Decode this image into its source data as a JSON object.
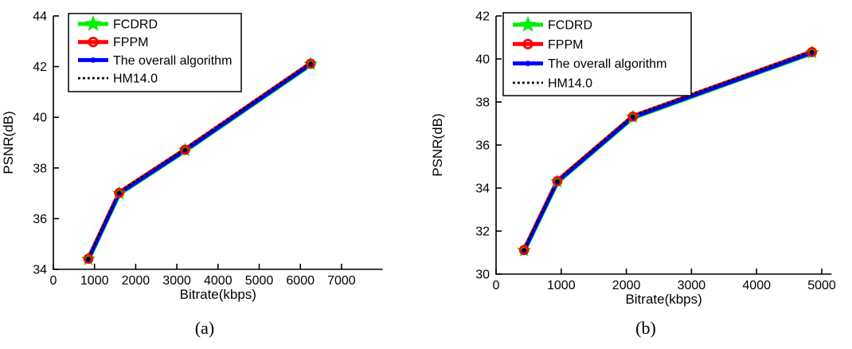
{
  "figure": {
    "background": "#ffffff",
    "axis_color": "#000000",
    "text_color": "#000000"
  },
  "chart_data": [
    {
      "type": "line",
      "panel": "a",
      "caption": "(a)",
      "xlabel": "Bitrate(kbps)",
      "ylabel": "PSNR(dB)",
      "xlim": [
        0,
        8000
      ],
      "ylim": [
        34,
        44
      ],
      "xticks": [
        0,
        1000,
        2000,
        3000,
        4000,
        5000,
        6000,
        7000
      ],
      "yticks": [
        34,
        36,
        38,
        40,
        42,
        44
      ],
      "grid": false,
      "legend_position": "top-left",
      "x": [
        850,
        1600,
        3200,
        6250
      ],
      "series": [
        {
          "name": "FCDRD",
          "color": "#00ee00",
          "marker": "star",
          "linestyle": "solid",
          "values": [
            34.4,
            37.0,
            38.7,
            42.1
          ]
        },
        {
          "name": "FPPM",
          "color": "#ff0000",
          "marker": "circle",
          "linestyle": "solid",
          "values": [
            34.4,
            37.0,
            38.7,
            42.1
          ]
        },
        {
          "name": "The overall algorithm",
          "color": "#0000ff",
          "marker": "point",
          "linestyle": "solid",
          "values": [
            34.4,
            37.0,
            38.7,
            42.1
          ]
        },
        {
          "name": "HM14.0",
          "color": "#000000",
          "marker": "none",
          "linestyle": "dotted",
          "values": [
            34.4,
            37.0,
            38.7,
            42.1
          ]
        }
      ]
    },
    {
      "type": "line",
      "panel": "b",
      "caption": "(b)",
      "xlabel": "Bitrate(kbps)",
      "ylabel": "PSNR(dB)",
      "xlim": [
        0,
        5150
      ],
      "ylim": [
        30,
        42
      ],
      "xticks": [
        0,
        1000,
        2000,
        3000,
        4000,
        5000
      ],
      "yticks": [
        30,
        32,
        34,
        36,
        38,
        40,
        42
      ],
      "grid": false,
      "legend_position": "top-left",
      "x": [
        430,
        940,
        2100,
        4850
      ],
      "series": [
        {
          "name": "FCDRD",
          "color": "#00ee00",
          "marker": "star",
          "linestyle": "solid",
          "values": [
            31.1,
            34.3,
            37.3,
            40.3
          ]
        },
        {
          "name": "FPPM",
          "color": "#ff0000",
          "marker": "circle",
          "linestyle": "solid",
          "values": [
            31.1,
            34.3,
            37.3,
            40.3
          ]
        },
        {
          "name": "The overall algorithm",
          "color": "#0000ff",
          "marker": "point",
          "linestyle": "solid",
          "values": [
            31.1,
            34.3,
            37.3,
            40.3
          ]
        },
        {
          "name": "HM14.0",
          "color": "#000000",
          "marker": "none",
          "linestyle": "dotted",
          "values": [
            31.1,
            34.3,
            37.3,
            40.3
          ]
        }
      ]
    }
  ]
}
